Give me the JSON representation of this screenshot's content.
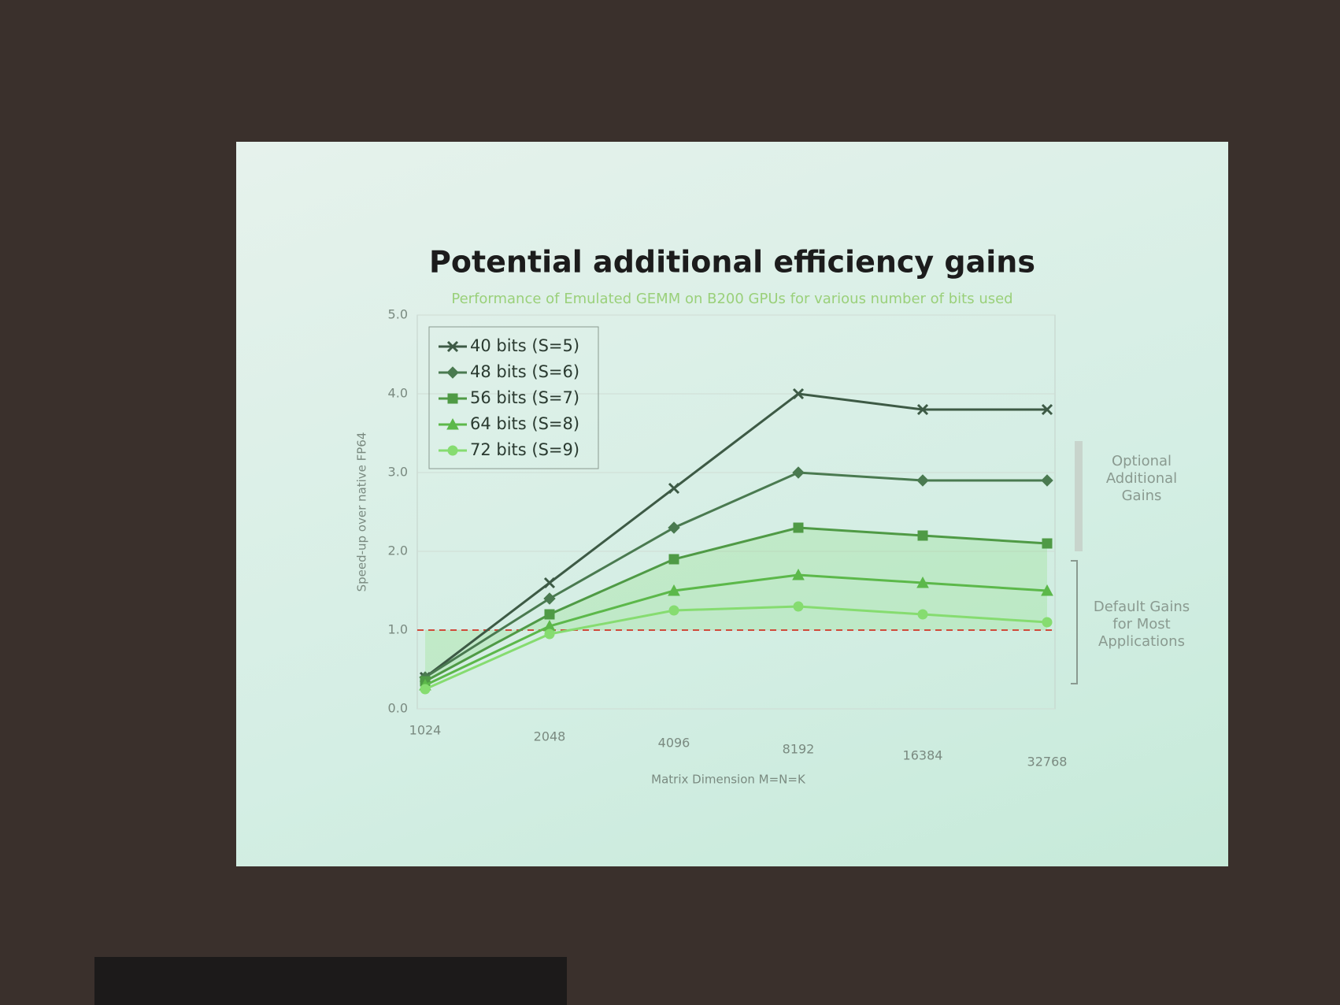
{
  "chart_data": {
    "type": "line",
    "title": "Potential additional efficiency gains",
    "subtitle": "Performance of Emulated GEMM on B200 GPUs for various number of bits used",
    "x_label": "Matrix Dimension M=N=K",
    "y_label": "Speed-up over native FP64",
    "categories": [
      "1024",
      "2048",
      "4096",
      "8192",
      "16384",
      "32768"
    ],
    "series": [
      {
        "name": "40 bits (S=5)",
        "color": "#3d5a45",
        "marker": "x",
        "values": [
          0.4,
          1.6,
          2.8,
          4.0,
          3.8,
          3.8
        ]
      },
      {
        "name": "48 bits (S=6)",
        "color": "#4a7a50",
        "marker": "diamond",
        "values": [
          0.4,
          1.4,
          2.3,
          3.0,
          2.9,
          2.9
        ]
      },
      {
        "name": "56 bits (S=7)",
        "color": "#4f9a45",
        "marker": "square",
        "values": [
          0.35,
          1.2,
          1.9,
          2.3,
          2.2,
          2.1
        ]
      },
      {
        "name": "64 bits (S=8)",
        "color": "#5cb84a",
        "marker": "triangle",
        "values": [
          0.3,
          1.05,
          1.5,
          1.7,
          1.6,
          1.5
        ]
      },
      {
        "name": "72 bits (S=9)",
        "color": "#86dc70",
        "marker": "circle",
        "values": [
          0.25,
          0.95,
          1.25,
          1.3,
          1.2,
          1.1
        ]
      }
    ],
    "ylim": [
      0,
      5
    ],
    "yticks": [
      {
        "value": 0,
        "label": "0.0"
      },
      {
        "value": 1,
        "label": "1.0"
      },
      {
        "value": 2,
        "label": "2.0"
      },
      {
        "value": 3,
        "label": "3.0"
      },
      {
        "value": 4,
        "label": "4.0"
      },
      {
        "value": 5,
        "label": "5.0"
      }
    ],
    "reference_line": 1,
    "reference_color": "#d04a3a",
    "grid": true,
    "legend": "upper left",
    "annotations": [
      "Optional Additional Gains",
      "Default Gains for Most Applications"
    ]
  }
}
